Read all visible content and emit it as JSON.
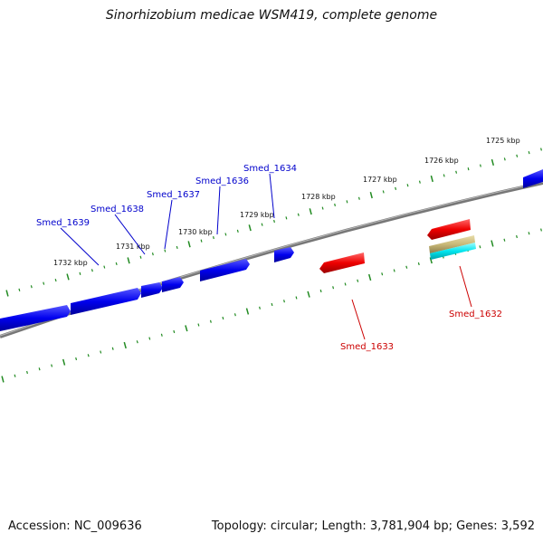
{
  "title": "Sinorhizobium medicae WSM419, complete genome",
  "footer": {
    "accession": "Accession: NC_009636",
    "summary": "Topology: circular; Length: 3,781,904 bp; Genes: 3,592"
  },
  "colors": {
    "backbone": "#808080",
    "forward_gene": "#0000ee",
    "reverse_gene": "#ee0000",
    "rrna_feature": "#c8b878",
    "misc_feature": "#00e5ee",
    "tick": "#228b22",
    "forward_label": "#0000cc",
    "reverse_label": "#cc0000"
  },
  "scale_labels": [
    "1725 kbp",
    "1726 kbp",
    "1727 kbp",
    "1728 kbp",
    "1729 kbp",
    "1730 kbp",
    "1731 kbp",
    "1732 kbp"
  ],
  "gene_labels": {
    "forward": [
      "Smed_1634",
      "Smed_1636",
      "Smed_1637",
      "Smed_1638",
      "Smed_1639"
    ],
    "reverse": [
      "Smed_1632",
      "Smed_1633"
    ]
  }
}
